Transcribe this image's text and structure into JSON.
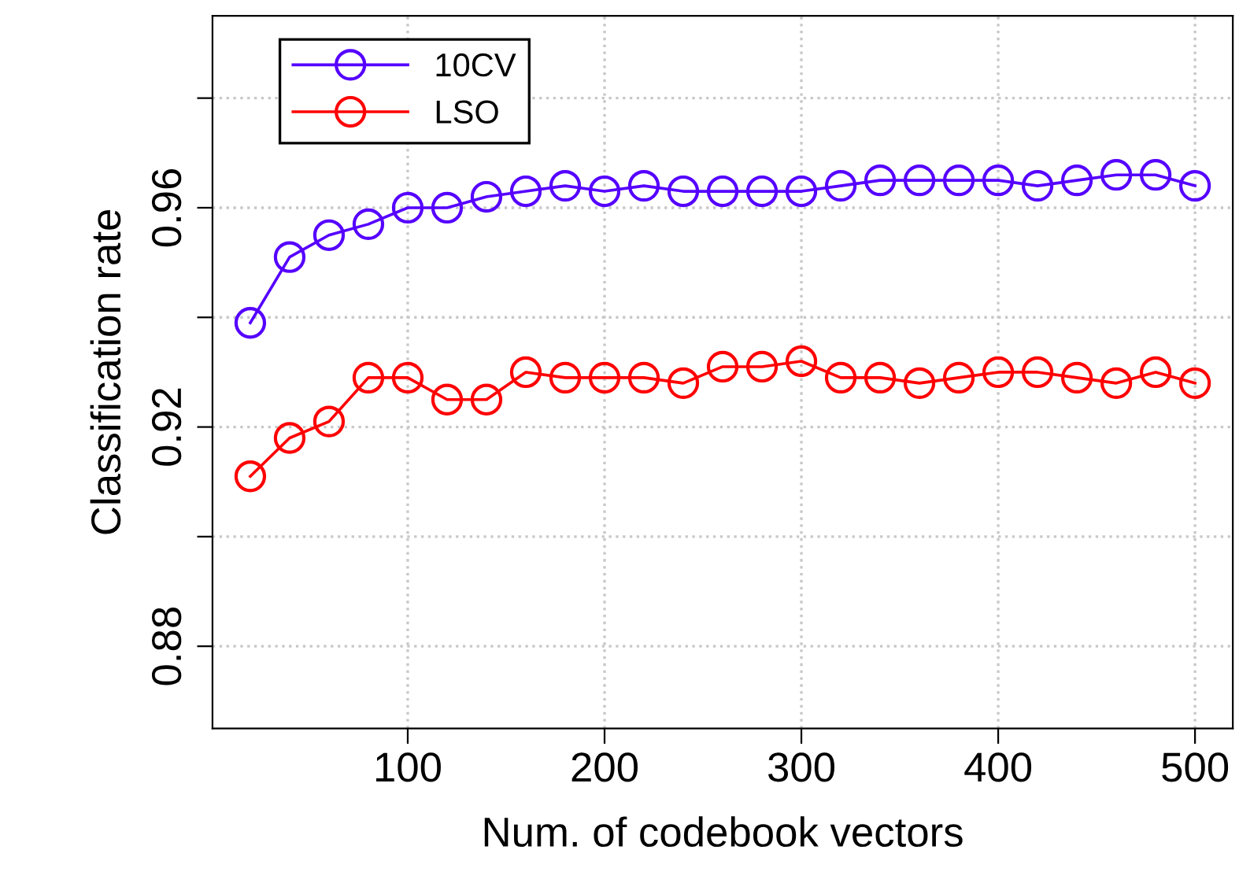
{
  "chart_data": {
    "type": "line",
    "xlabel": "Num. of codebook vectors",
    "ylabel": "Classification rate",
    "x": [
      20,
      40,
      60,
      80,
      100,
      120,
      140,
      160,
      180,
      200,
      220,
      240,
      260,
      280,
      300,
      320,
      340,
      360,
      380,
      400,
      420,
      440,
      460,
      480,
      500
    ],
    "series": [
      {
        "name": "10CV",
        "color": "#5500ff",
        "values": [
          0.939,
          0.951,
          0.955,
          0.957,
          0.96,
          0.96,
          0.962,
          0.963,
          0.964,
          0.963,
          0.964,
          0.963,
          0.963,
          0.963,
          0.963,
          0.964,
          0.965,
          0.965,
          0.965,
          0.965,
          0.964,
          0.965,
          0.966,
          0.966,
          0.964
        ]
      },
      {
        "name": "LSO",
        "color": "#ff0000",
        "values": [
          0.911,
          0.918,
          0.921,
          0.929,
          0.929,
          0.925,
          0.925,
          0.93,
          0.929,
          0.929,
          0.929,
          0.928,
          0.931,
          0.931,
          0.932,
          0.929,
          0.929,
          0.928,
          0.929,
          0.93,
          0.93,
          0.929,
          0.928,
          0.93,
          0.928
        ]
      }
    ],
    "xlim": [
      0.8,
      519.2
    ],
    "ylim": [
      0.865,
      0.995
    ],
    "xticks": [
      100,
      200,
      300,
      400,
      500
    ],
    "yticks": [
      0.88,
      {
        "value": 0.9,
        "label": null
      },
      0.92,
      {
        "value": 0.94,
        "label": null
      },
      0.96,
      {
        "value": 0.98,
        "label": null
      }
    ],
    "grid": true,
    "legend": "top left",
    "marker": "circle",
    "line_style": "solid"
  }
}
